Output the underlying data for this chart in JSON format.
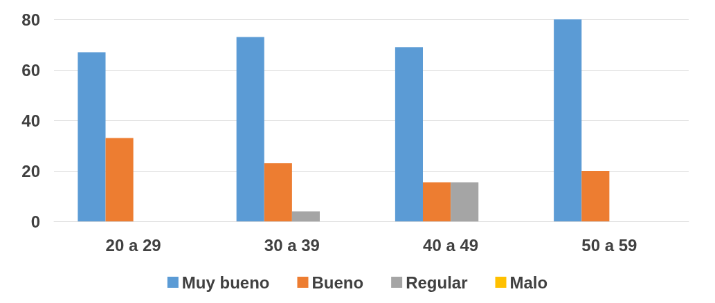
{
  "chart_data": {
    "type": "bar",
    "categories": [
      "20 a 29",
      "30 a 39",
      "40 a 49",
      "50 a 59"
    ],
    "series": [
      {
        "name": "Muy bueno",
        "color": "#5b9bd5",
        "values": [
          67,
          73,
          69,
          80
        ]
      },
      {
        "name": "Bueno",
        "color": "#ed7d31",
        "values": [
          33,
          23,
          15.5,
          20
        ]
      },
      {
        "name": "Regular",
        "color": "#a5a5a5",
        "values": [
          0,
          4,
          15.5,
          0
        ]
      },
      {
        "name": "Malo",
        "color": "#ffc000",
        "values": [
          0,
          0,
          0,
          0
        ]
      }
    ],
    "ylim": [
      0,
      80
    ],
    "yticks": [
      0,
      20,
      40,
      60,
      80
    ],
    "grid": true,
    "legend": "bottom"
  }
}
